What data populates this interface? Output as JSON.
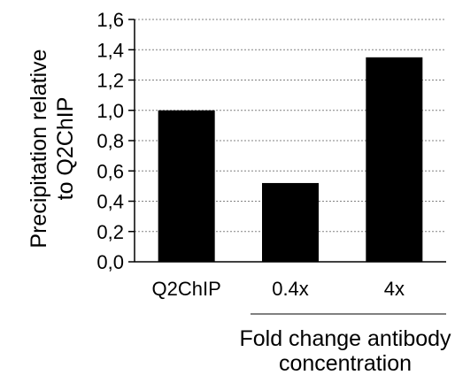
{
  "chart_data": {
    "type": "bar",
    "categories": [
      "Q2ChIP",
      "0.4x",
      "4x"
    ],
    "values": [
      1.0,
      0.52,
      1.35
    ],
    "ylim": [
      0,
      1.6
    ],
    "yticks": [
      "0,0",
      "0,2",
      "0,4",
      "0,6",
      "0,8",
      "1,0",
      "1,2",
      "1,4",
      "1,6"
    ],
    "ylabel_line1": "Precipitation relative",
    "ylabel_line2": "to Q2ChIP",
    "group_label_line1": "Fold change antibody",
    "group_label_line2": "concentration",
    "grid": true,
    "bar_color": "#000000",
    "grid_color": "#808080"
  }
}
